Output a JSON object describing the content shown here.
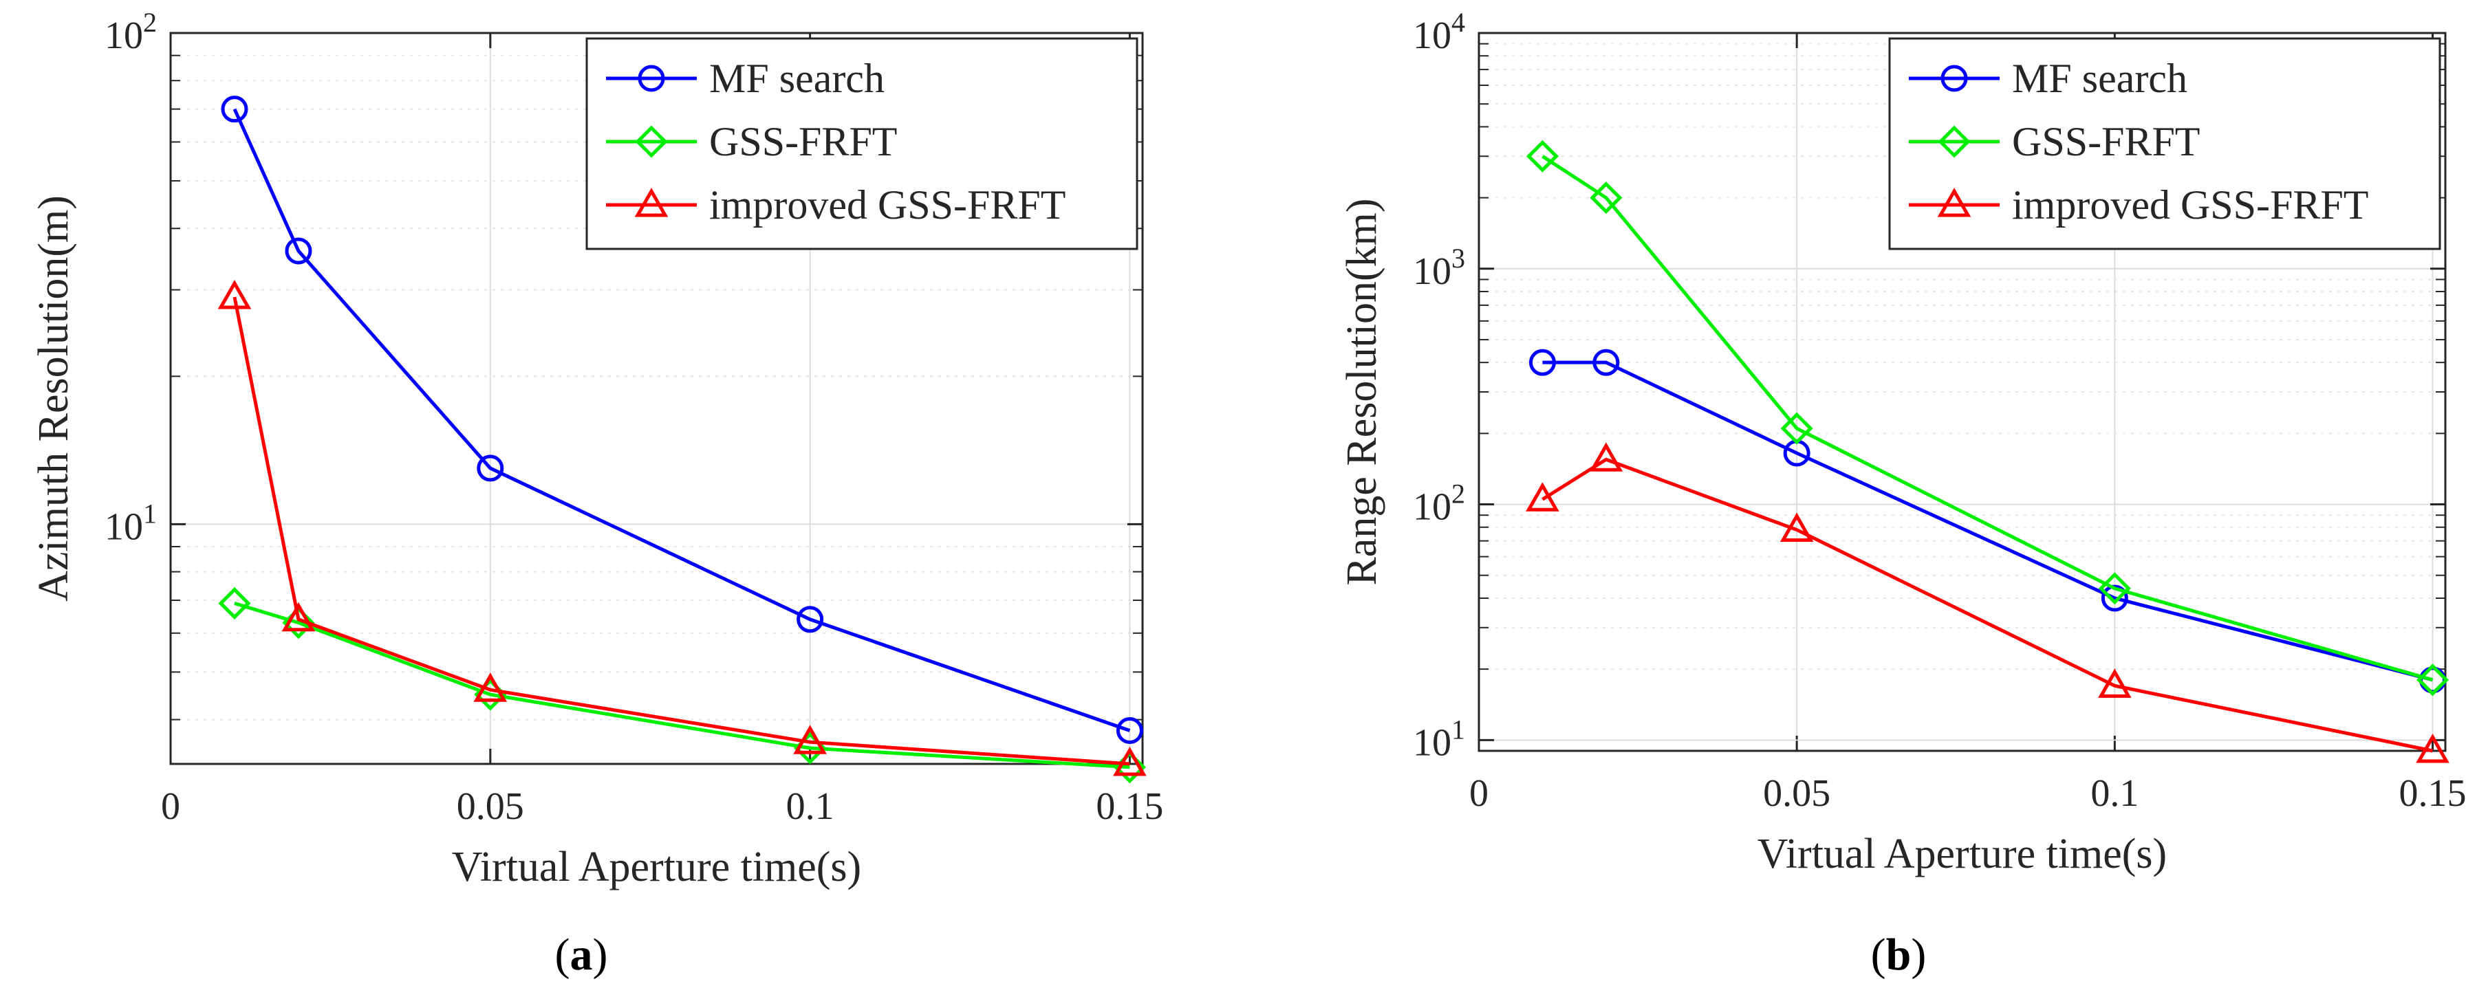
{
  "charts": [
    {
      "panel": "a",
      "caption": "(a)",
      "caption_prefix": "(",
      "caption_letter": "a",
      "caption_suffix": ")",
      "chart_data": {
        "type": "line",
        "title": "",
        "xlabel": "Virtual Aperture time(s)",
        "ylabel": "Azimuth Resolution(m)",
        "xlim": [
          0,
          0.152
        ],
        "ylim": [
          3.25,
          100
        ],
        "yscale": "log",
        "grid": true,
        "legend_position": "top-right",
        "x_ticks": [
          0,
          0.05,
          0.1,
          0.15
        ],
        "x_tick_labels": [
          "0",
          "0.05",
          "0.1",
          "0.15"
        ],
        "y_ticks": [
          10,
          100
        ],
        "y_tick_labels": [
          {
            "base": "10",
            "exp": "1"
          },
          {
            "base": "10",
            "exp": "2"
          }
        ],
        "series": [
          {
            "name": "MF search",
            "color": "#0000ff",
            "marker": "circle",
            "x": [
              0.01,
              0.02,
              0.05,
              0.1,
              0.15
            ],
            "y": [
              70,
              36,
              13,
              6.4,
              3.8
            ]
          },
          {
            "name": "GSS-FRFT",
            "color": "#00ee00",
            "marker": "diamond",
            "x": [
              0.01,
              0.02,
              0.05,
              0.1,
              0.15
            ],
            "y": [
              6.9,
              6.3,
              4.5,
              3.5,
              3.2
            ]
          },
          {
            "name": "improved GSS-FRFT",
            "color": "#ff0000",
            "marker": "triangle",
            "x": [
              0.01,
              0.02,
              0.05,
              0.1,
              0.15
            ],
            "y": [
              29,
              6.4,
              4.6,
              3.6,
              3.25
            ]
          }
        ]
      }
    },
    {
      "panel": "b",
      "caption": "(b)",
      "caption_prefix": "(",
      "caption_letter": "b",
      "caption_suffix": ")",
      "chart_data": {
        "type": "line",
        "title": "",
        "xlabel": "Virtual Aperture time(s)",
        "ylabel": "Range Resolution(km)",
        "xlim": [
          0,
          0.152
        ],
        "ylim": [
          9,
          10000
        ],
        "yscale": "log",
        "grid": true,
        "legend_position": "top-right",
        "x_ticks": [
          0,
          0.05,
          0.1,
          0.15
        ],
        "x_tick_labels": [
          "0",
          "0.05",
          "0.1",
          "0.15"
        ],
        "y_ticks": [
          10,
          100,
          1000,
          10000
        ],
        "y_tick_labels": [
          {
            "base": "10",
            "exp": "1"
          },
          {
            "base": "10",
            "exp": "2"
          },
          {
            "base": "10",
            "exp": "3"
          },
          {
            "base": "10",
            "exp": "4"
          }
        ],
        "series": [
          {
            "name": "MF search",
            "color": "#0000ff",
            "marker": "circle",
            "x": [
              0.01,
              0.02,
              0.05,
              0.1,
              0.15
            ],
            "y": [
              400,
              400,
              165,
              40,
              18
            ]
          },
          {
            "name": "GSS-FRFT",
            "color": "#00ee00",
            "marker": "diamond",
            "x": [
              0.01,
              0.02,
              0.05,
              0.1,
              0.15
            ],
            "y": [
              3000,
              2000,
              210,
              44,
              18
            ]
          },
          {
            "name": "improved GSS-FRFT",
            "color": "#ff0000",
            "marker": "triangle",
            "x": [
              0.01,
              0.02,
              0.05,
              0.1,
              0.15
            ],
            "y": [
              105,
              155,
              78,
              17,
              9
            ]
          }
        ]
      }
    }
  ]
}
